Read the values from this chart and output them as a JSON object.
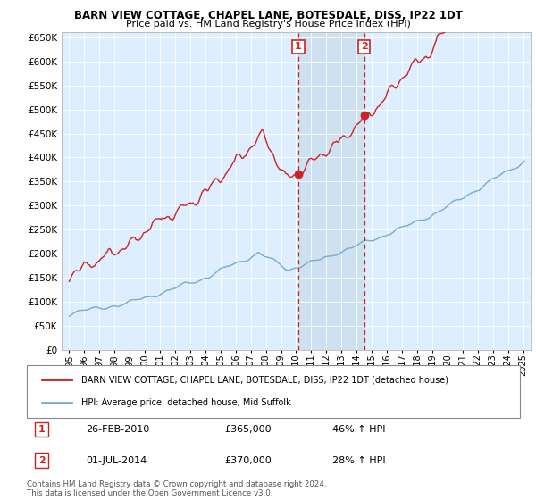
{
  "title": "BARN VIEW COTTAGE, CHAPEL LANE, BOTESDALE, DISS, IP22 1DT",
  "subtitle": "Price paid vs. HM Land Registry's House Price Index (HPI)",
  "legend_line1": "BARN VIEW COTTAGE, CHAPEL LANE, BOTESDALE, DISS, IP22 1DT (detached house)",
  "legend_line2": "HPI: Average price, detached house, Mid Suffolk",
  "note": "Contains HM Land Registry data © Crown copyright and database right 2024.\nThis data is licensed under the Open Government Licence v3.0.",
  "sale1_date": "26-FEB-2010",
  "sale1_price": 365000,
  "sale1_hpi": "46% ↑ HPI",
  "sale2_date": "01-JUL-2014",
  "sale2_price": 370000,
  "sale2_hpi": "28% ↑ HPI",
  "hpi_color": "#7aaad0",
  "price_color": "#cc2222",
  "sale1_x": 2010.15,
  "sale2_x": 2014.5,
  "ylim_min": 0,
  "ylim_max": 660000,
  "xlim_min": 1994.5,
  "xlim_max": 2025.5,
  "background_color": "#ddeeff",
  "shade_color": "#cce0f0"
}
